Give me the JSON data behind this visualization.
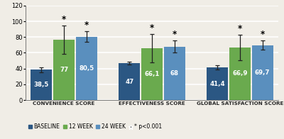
{
  "groups": [
    "CONVENIENCE SCORE",
    "EFFECTIVENESS SCORE",
    "GLOBAL SATISFACTION SCORE"
  ],
  "series": {
    "BASELINE": [
      38.5,
      47,
      41.4
    ],
    "12 WEEK": [
      77,
      66.1,
      66.9
    ],
    "24 WEEK": [
      80.5,
      68,
      69.7
    ]
  },
  "errors": {
    "BASELINE": [
      3,
      2,
      2.5
    ],
    "12 WEEK": [
      18,
      18,
      16
    ],
    "24 WEEK": [
      7,
      8,
      6
    ]
  },
  "colors": {
    "BASELINE": "#2b5783",
    "12 WEEK": "#6aaa4e",
    "24 WEEK": "#5a8fbe"
  },
  "bar_labels": {
    "BASELINE": [
      "38,5",
      "47",
      "41,4"
    ],
    "12 WEEK": [
      "77",
      "66,1",
      "66,9"
    ],
    "24 WEEK": [
      "80,5",
      "68",
      "69,7"
    ]
  },
  "sig_12week": [
    true,
    true,
    true
  ],
  "sig_24week": [
    true,
    true,
    true
  ],
  "ylim": [
    0,
    120
  ],
  "yticks": [
    0,
    20,
    40,
    60,
    80,
    100,
    120
  ],
  "bar_width": 0.24,
  "group_centers": [
    0.26,
    1.2,
    2.14
  ],
  "legend_labels": [
    "BASELINE",
    "12 WEEK",
    "24 WEEK"
  ],
  "sig_label": "* p<0.001",
  "background_color": "#f0ede6",
  "grid_color": "#ffffff",
  "label_fontsize": 5.2,
  "tick_fontsize": 6.0,
  "bar_label_fontsize": 6.2,
  "legend_fontsize": 5.5,
  "star_fontsize": 8.5,
  "star_char": "*"
}
